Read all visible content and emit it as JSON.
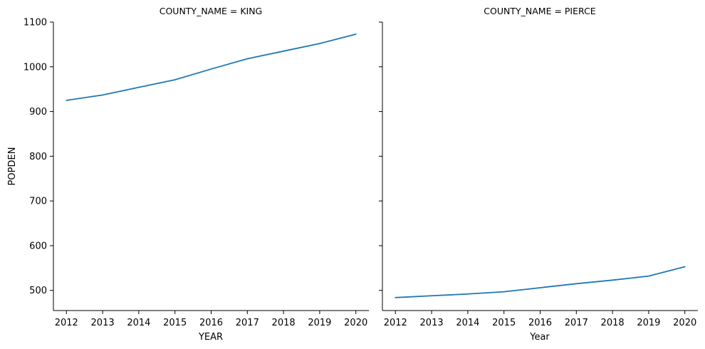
{
  "chart_data": [
    {
      "type": "line",
      "title": "COUNTY_NAME = KING",
      "xlabel": "YEAR",
      "ylabel": "POPDEN",
      "x": [
        2012,
        2013,
        2014,
        2015,
        2016,
        2017,
        2018,
        2019,
        2020
      ],
      "xticks": [
        2012,
        2013,
        2014,
        2015,
        2016,
        2017,
        2018,
        2019,
        2020
      ],
      "yticks": [
        500,
        600,
        700,
        800,
        900,
        1000,
        1100
      ],
      "ylim": [
        455,
        1100
      ],
      "grid": false,
      "series": [
        {
          "values": [
            925,
            937,
            954,
            971,
            995,
            1018,
            1035,
            1052,
            1073
          ],
          "color": "#1f77b4"
        }
      ]
    },
    {
      "type": "line",
      "title": "COUNTY_NAME = PIERCE",
      "xlabel": "Year",
      "ylabel": "",
      "x": [
        2012,
        2013,
        2014,
        2015,
        2016,
        2017,
        2018,
        2019,
        2020
      ],
      "xticks": [
        2012,
        2013,
        2014,
        2015,
        2016,
        2017,
        2018,
        2019,
        2020
      ],
      "yticks": [
        500,
        600,
        700,
        800,
        900,
        1000,
        1100
      ],
      "ylim": [
        455,
        1100
      ],
      "grid": false,
      "series": [
        {
          "values": [
            484,
            488,
            492,
            497,
            506,
            515,
            523,
            532,
            553
          ],
          "color": "#1f77b4"
        }
      ]
    }
  ]
}
